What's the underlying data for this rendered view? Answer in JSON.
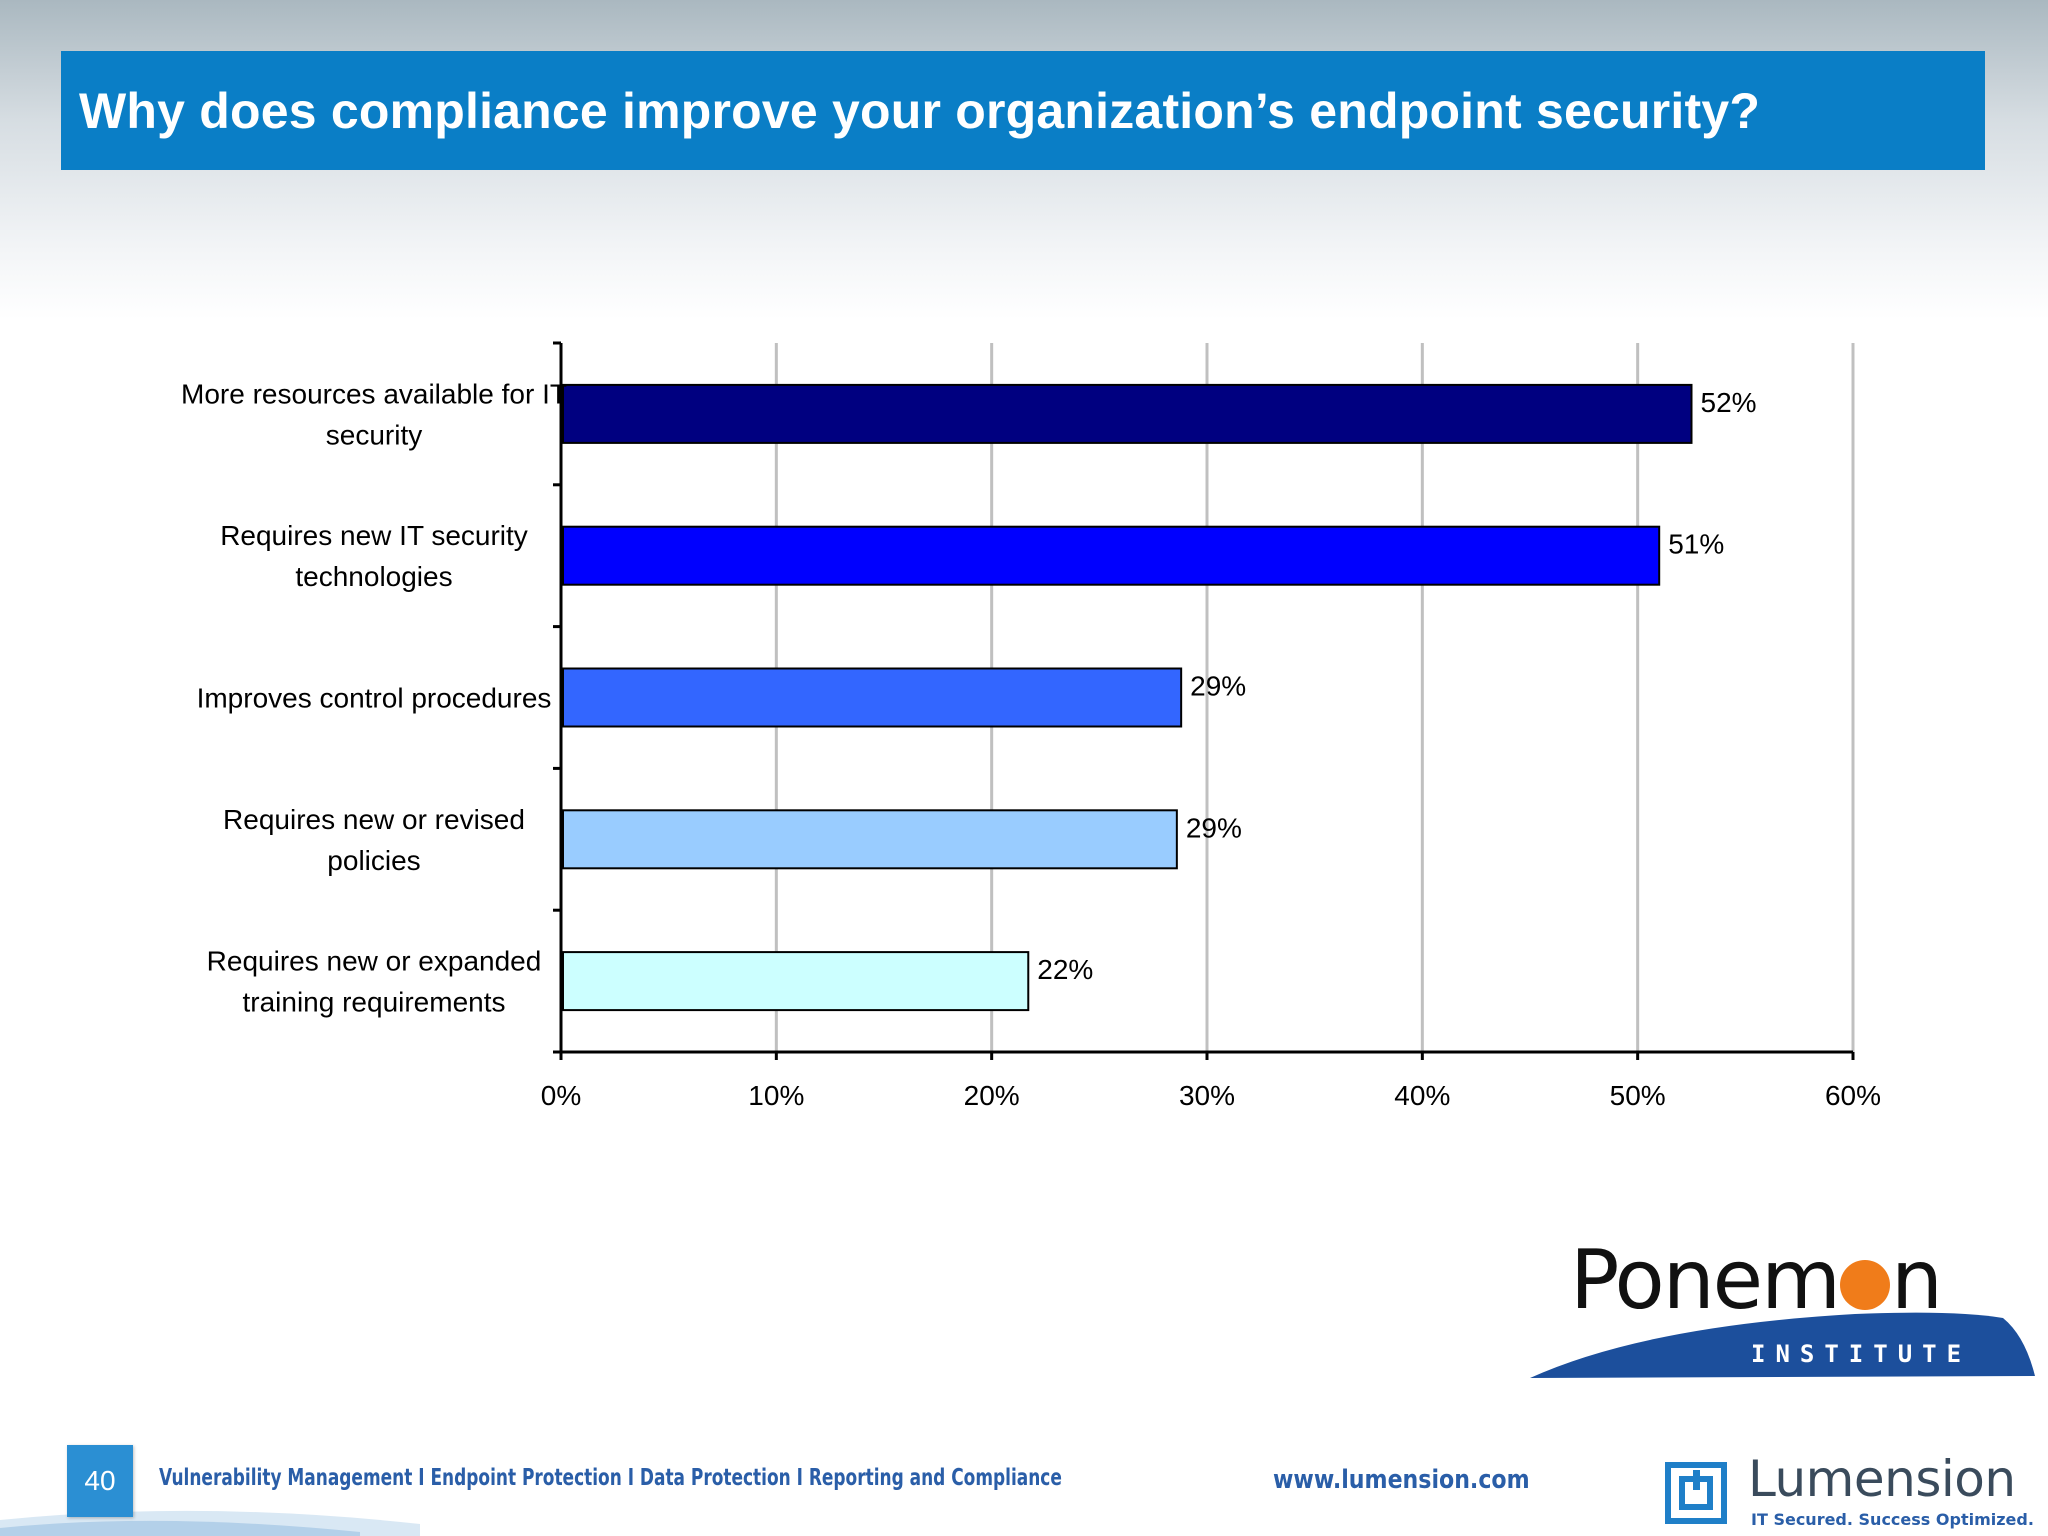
{
  "slide": {
    "title": "Why does compliance improve your organization’s endpoint security?",
    "page_number": "40"
  },
  "chart_data": {
    "type": "bar",
    "orientation": "horizontal",
    "title": "",
    "xlabel": "",
    "ylabel": "",
    "categories": [
      [
        "More resources available for IT",
        "security"
      ],
      [
        "Requires new  IT security",
        "technologies"
      ],
      [
        "Improves control procedures"
      ],
      [
        "Requires new  or revised",
        "policies"
      ],
      [
        "Requires new  or expanded",
        "training requirements"
      ]
    ],
    "values": [
      52.5,
      51,
      28.8,
      28.6,
      21.7
    ],
    "data_labels": [
      "52%",
      "51%",
      "29%",
      "29%",
      "22%"
    ],
    "bar_colors": [
      "#000080",
      "#0000ff",
      "#3366ff",
      "#99ccff",
      "#ccffff"
    ],
    "xlim": [
      0,
      60
    ],
    "x_ticks": [
      0,
      10,
      20,
      30,
      40,
      50,
      60
    ],
    "x_tick_labels": [
      "0%",
      "10%",
      "20%",
      "30%",
      "40%",
      "50%",
      "60%"
    ],
    "grid": "vertical",
    "legend": "none"
  },
  "logos": {
    "ponemon_word": "Ponem",
    "ponemon_word_end": "n",
    "ponemon_sub": "INSTITUTE",
    "lumension_word": "Lumension",
    "lumension_tag": "IT Secured. Success Optimized."
  },
  "footer": {
    "tagline": "Vulnerability Management I Endpoint Protection I Data Protection I Reporting and Compliance",
    "url": "www.lumension.com"
  },
  "colors": {
    "title_bar": "#0a7ec6",
    "ponemon_orange": "#f07c1a",
    "ponemon_blue": "#1c4f9c",
    "footer_blue": "#2a5ea8"
  }
}
